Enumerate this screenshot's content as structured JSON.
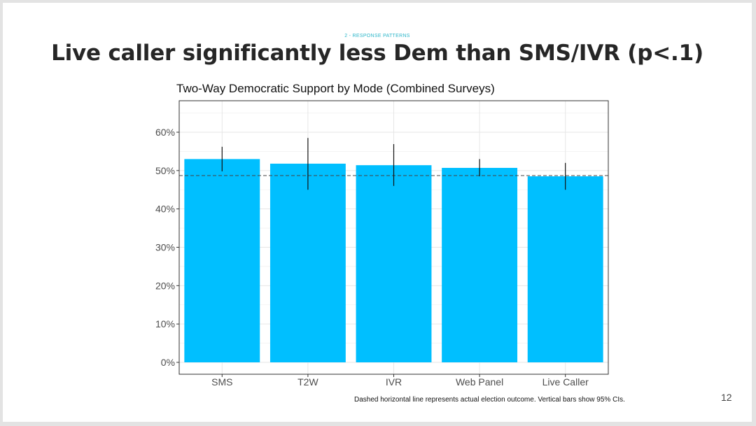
{
  "slide": {
    "kicker": "2 - RESPONSE PATTERNS",
    "headline": "Live caller significantly less Dem than SMS/IVR (p<.1)",
    "caption": "Dashed horizontal line represents actual election outcome. Vertical bars show 95% CIs.",
    "page_number": "12"
  },
  "chart_data": {
    "type": "bar",
    "title": "Two-Way Democratic Support by Mode (Combined Surveys)",
    "xlabel": "",
    "ylabel": "",
    "categories": [
      "SMS",
      "T2W",
      "IVR",
      "Web Panel",
      "Live Caller"
    ],
    "values": [
      53.0,
      51.8,
      51.4,
      50.7,
      48.5
    ],
    "ci_low": [
      49.8,
      45.0,
      46.0,
      48.5,
      45.0
    ],
    "ci_high": [
      56.2,
      58.5,
      56.9,
      53.0,
      52.0
    ],
    "reference_line": 48.7,
    "ylim": [
      0,
      68
    ],
    "yticks": [
      0,
      10,
      20,
      30,
      40,
      50,
      60
    ],
    "ytick_labels": [
      "0%",
      "10%",
      "20%",
      "30%",
      "40%",
      "50%",
      "60%"
    ],
    "bar_color": "#00bfff",
    "grid": true,
    "legend": "none"
  }
}
